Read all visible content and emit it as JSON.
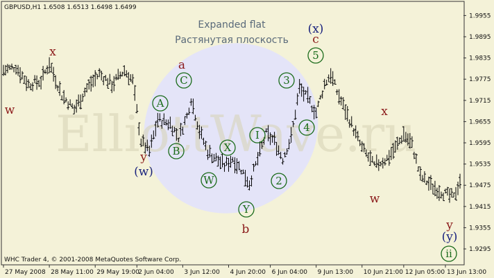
{
  "header": {
    "symbol_line": "GBPUSD,H1  1.6508 1.6513 1.6498 1.6499"
  },
  "footer": {
    "copyright": "WHC Trader 4, © 2001-2008 MetaQuotes Software Corp."
  },
  "watermark": "ElliottWave.ru",
  "colors": {
    "background": "#f4f2d8",
    "bars": "#000000",
    "ellipse": "#e4e4f8",
    "red": "#8b1a1a",
    "navy": "#1a237e",
    "green": "#1a6b1a"
  },
  "chart_data": {
    "type": "ohlc-bar",
    "title": "Expanded flat",
    "subtitle": "Растянутая плоскость",
    "ylim": [
      1.925,
      1.9995
    ],
    "y_ticks": [
      1.9955,
      1.9895,
      1.9835,
      1.9775,
      1.9715,
      1.9655,
      1.9595,
      1.9535,
      1.9475,
      1.9415,
      1.9355,
      1.9295
    ],
    "x_ticks": [
      "27 May 2008",
      "28 May 11:00",
      "29 May 19:00",
      "2 Jun 04:00",
      "3 Jun 12:00",
      "4 Jun 20:00",
      "6 Jun 04:00",
      "9 Jun 13:00",
      "10 Jun 21:00",
      "12 Jun 05:00",
      "13 Jun 13:00"
    ],
    "bar_count": 220,
    "path": [
      [
        0,
        1.98
      ],
      [
        6,
        1.981
      ],
      [
        12,
        1.976
      ],
      [
        18,
        1.977
      ],
      [
        22,
        1.982
      ],
      [
        28,
        1.973
      ],
      [
        34,
        1.969
      ],
      [
        40,
        1.975
      ],
      [
        46,
        1.979
      ],
      [
        52,
        1.976
      ],
      [
        58,
        1.98
      ],
      [
        62,
        1.977
      ],
      [
        66,
        1.96
      ],
      [
        70,
        1.957
      ],
      [
        74,
        1.966
      ],
      [
        80,
        1.965
      ],
      [
        84,
        1.961
      ],
      [
        88,
        1.967
      ],
      [
        90,
        1.972
      ],
      [
        94,
        1.963
      ],
      [
        98,
        1.957
      ],
      [
        102,
        1.955
      ],
      [
        106,
        1.953
      ],
      [
        110,
        1.955
      ],
      [
        114,
        1.952
      ],
      [
        118,
        1.948
      ],
      [
        122,
        1.955
      ],
      [
        126,
        1.962
      ],
      [
        130,
        1.96
      ],
      [
        134,
        1.955
      ],
      [
        138,
        1.961
      ],
      [
        142,
        1.975
      ],
      [
        146,
        1.972
      ],
      [
        150,
        1.968
      ],
      [
        154,
        1.976
      ],
      [
        157,
        1.979
      ],
      [
        160,
        1.974
      ],
      [
        166,
        1.966
      ],
      [
        172,
        1.958
      ],
      [
        178,
        1.953
      ],
      [
        184,
        1.955
      ],
      [
        188,
        1.958
      ],
      [
        192,
        1.962
      ],
      [
        196,
        1.959
      ],
      [
        200,
        1.95
      ],
      [
        206,
        1.947
      ],
      [
        212,
        1.945
      ],
      [
        216,
        1.944
      ],
      [
        219,
        1.949
      ]
    ],
    "wave_labels": [
      {
        "text": "w",
        "color": "red"
      },
      {
        "text": "x",
        "color": "red"
      },
      {
        "text": "y",
        "color": "red"
      },
      {
        "text": "(w)",
        "color": "navy"
      },
      {
        "text": "a",
        "color": "red"
      },
      {
        "text": "b",
        "color": "red"
      },
      {
        "text": "(x)",
        "color": "navy"
      },
      {
        "text": "c",
        "color": "red"
      },
      {
        "text": "x",
        "color": "red"
      },
      {
        "text": "w",
        "color": "red"
      },
      {
        "text": "y",
        "color": "red"
      },
      {
        "text": "(y)",
        "color": "navy"
      }
    ],
    "circled_labels": [
      "A",
      "B",
      "C",
      "X",
      "W",
      "Y",
      "I",
      "2",
      "3",
      "4",
      "5",
      "ii"
    ]
  }
}
